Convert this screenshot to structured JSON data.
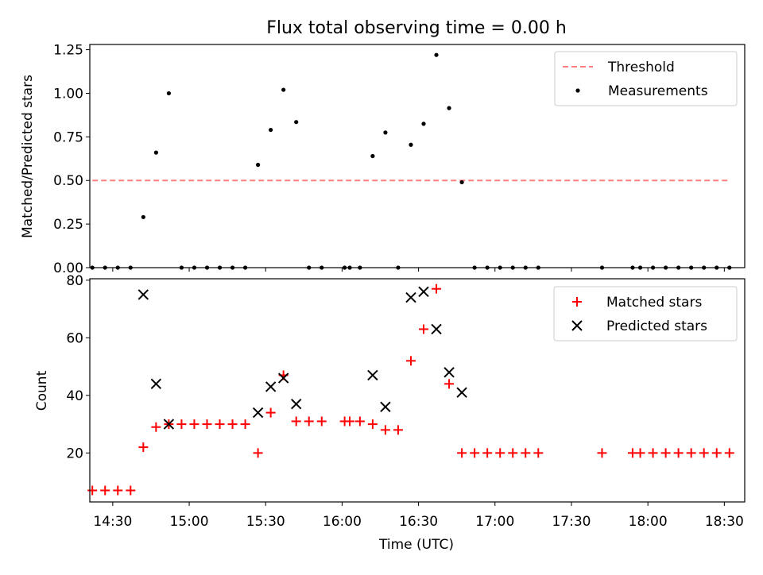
{
  "title": "Flux total observing time = 0.00 h",
  "colors": {
    "threshold": "#ff7f7f",
    "measurements": "#000000",
    "matched": "#ff0000",
    "predicted": "#000000"
  },
  "chart_data": [
    {
      "type": "scatter",
      "ylabel": "Matched/Predicted stars",
      "xlim": [
        "14:21",
        "18:38"
      ],
      "ylim": [
        0,
        1.28
      ],
      "yticks": [
        "0.00",
        "0.25",
        "0.50",
        "0.75",
        "1.00",
        "1.25"
      ],
      "ytick_values": [
        0,
        0.25,
        0.5,
        0.75,
        1.0,
        1.25
      ],
      "xtick_values": [
        "14:30",
        "15:00",
        "15:30",
        "16:00",
        "16:30",
        "17:00",
        "17:30",
        "18:00",
        "18:30"
      ],
      "legend_position": "upper-right",
      "legend": [
        "Threshold",
        "Measurements"
      ],
      "threshold": {
        "name": "Threshold",
        "y": 0.5,
        "x_start": "14:22",
        "x_end": "18:32"
      },
      "series": [
        {
          "name": "Measurements",
          "points": [
            [
              "14:22",
              0
            ],
            [
              "14:27",
              0
            ],
            [
              "14:32",
              0
            ],
            [
              "14:37",
              0
            ],
            [
              "14:42",
              0.29
            ],
            [
              "14:47",
              0.66
            ],
            [
              "14:52",
              1.0
            ],
            [
              "14:57",
              0
            ],
            [
              "15:02",
              0
            ],
            [
              "15:07",
              0
            ],
            [
              "15:12",
              0
            ],
            [
              "15:17",
              0
            ],
            [
              "15:22",
              0
            ],
            [
              "15:27",
              0.59
            ],
            [
              "15:32",
              0.79
            ],
            [
              "15:37",
              1.02
            ],
            [
              "15:42",
              0.835
            ],
            [
              "15:47",
              0
            ],
            [
              "15:52",
              0
            ],
            [
              "16:01",
              0
            ],
            [
              "16:03",
              0
            ],
            [
              "16:07",
              0
            ],
            [
              "16:12",
              0.64
            ],
            [
              "16:17",
              0.775
            ],
            [
              "16:22",
              0
            ],
            [
              "16:27",
              0.705
            ],
            [
              "16:32",
              0.825
            ],
            [
              "16:37",
              1.22
            ],
            [
              "16:42",
              0.915
            ],
            [
              "16:47",
              0.49
            ],
            [
              "16:52",
              0
            ],
            [
              "16:57",
              0
            ],
            [
              "17:02",
              0
            ],
            [
              "17:07",
              0
            ],
            [
              "17:12",
              0
            ],
            [
              "17:17",
              0
            ],
            [
              "17:42",
              0
            ],
            [
              "17:54",
              0
            ],
            [
              "17:57",
              0
            ],
            [
              "18:02",
              0
            ],
            [
              "18:07",
              0
            ],
            [
              "18:12",
              0
            ],
            [
              "18:17",
              0
            ],
            [
              "18:22",
              0
            ],
            [
              "18:27",
              0
            ],
            [
              "18:32",
              0
            ]
          ]
        }
      ]
    },
    {
      "type": "scatter",
      "xlabel": "Time (UTC)",
      "ylabel": "Count",
      "xlim": [
        "14:21",
        "18:38"
      ],
      "ylim": [
        3,
        80.5
      ],
      "yticks": [
        "20",
        "40",
        "60",
        "80"
      ],
      "ytick_values": [
        20,
        40,
        60,
        80
      ],
      "xticks": [
        "14:30",
        "15:00",
        "15:30",
        "16:00",
        "16:30",
        "17:00",
        "17:30",
        "18:00",
        "18:30"
      ],
      "xtick_values": [
        "14:30",
        "15:00",
        "15:30",
        "16:00",
        "16:30",
        "17:00",
        "17:30",
        "18:00",
        "18:30"
      ],
      "legend_position": "upper-right",
      "legend": [
        "Matched stars",
        "Predicted stars"
      ],
      "series": [
        {
          "name": "Matched stars",
          "marker": "+",
          "points": [
            [
              "14:22",
              7
            ],
            [
              "14:27",
              7
            ],
            [
              "14:32",
              7
            ],
            [
              "14:37",
              7
            ],
            [
              "14:42",
              22
            ],
            [
              "14:47",
              29
            ],
            [
              "14:52",
              30
            ],
            [
              "14:57",
              30
            ],
            [
              "15:02",
              30
            ],
            [
              "15:07",
              30
            ],
            [
              "15:12",
              30
            ],
            [
              "15:17",
              30
            ],
            [
              "15:22",
              30
            ],
            [
              "15:27",
              20
            ],
            [
              "15:32",
              34
            ],
            [
              "15:37",
              47
            ],
            [
              "15:42",
              31
            ],
            [
              "15:47",
              31
            ],
            [
              "15:52",
              31
            ],
            [
              "16:01",
              31
            ],
            [
              "16:03",
              31
            ],
            [
              "16:07",
              31
            ],
            [
              "16:12",
              30
            ],
            [
              "16:17",
              28
            ],
            [
              "16:22",
              28
            ],
            [
              "16:27",
              52
            ],
            [
              "16:32",
              63
            ],
            [
              "16:37",
              77
            ],
            [
              "16:42",
              44
            ],
            [
              "16:47",
              20
            ],
            [
              "16:52",
              20
            ],
            [
              "16:57",
              20
            ],
            [
              "17:02",
              20
            ],
            [
              "17:07",
              20
            ],
            [
              "17:12",
              20
            ],
            [
              "17:17",
              20
            ],
            [
              "17:42",
              20
            ],
            [
              "17:54",
              20
            ],
            [
              "17:57",
              20
            ],
            [
              "18:02",
              20
            ],
            [
              "18:07",
              20
            ],
            [
              "18:12",
              20
            ],
            [
              "18:17",
              20
            ],
            [
              "18:22",
              20
            ],
            [
              "18:27",
              20
            ],
            [
              "18:32",
              20
            ]
          ]
        },
        {
          "name": "Predicted stars",
          "marker": "x",
          "points": [
            [
              "14:42",
              75
            ],
            [
              "14:47",
              44
            ],
            [
              "14:52",
              30
            ],
            [
              "15:27",
              34
            ],
            [
              "15:32",
              43
            ],
            [
              "15:37",
              46
            ],
            [
              "15:42",
              37
            ],
            [
              "16:12",
              47
            ],
            [
              "16:17",
              36
            ],
            [
              "16:27",
              74
            ],
            [
              "16:32",
              76
            ],
            [
              "16:37",
              63
            ],
            [
              "16:42",
              48
            ],
            [
              "16:47",
              41
            ]
          ]
        }
      ]
    }
  ]
}
